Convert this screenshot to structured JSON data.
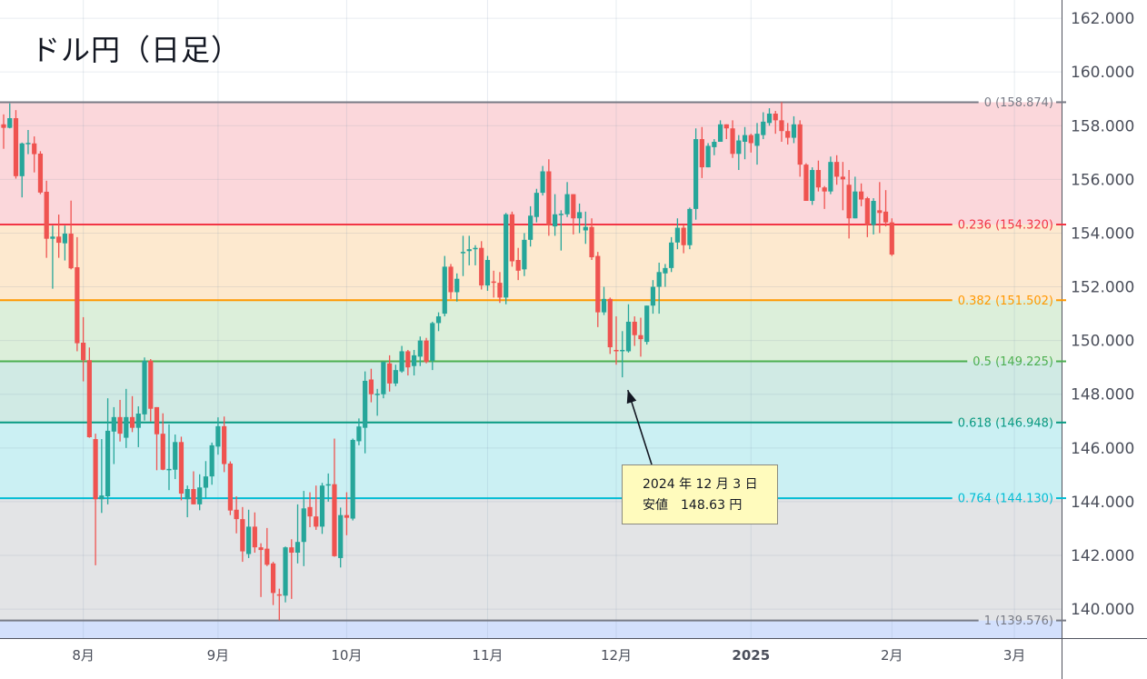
{
  "title": "ドル円（日足）",
  "chart_data": {
    "type": "candlestick",
    "title": "ドル円（日足）",
    "ylim": [
      138.92,
      162.68
    ],
    "y_ticks": [
      140,
      142,
      144,
      146,
      148,
      150,
      152,
      154,
      156,
      158,
      160,
      162
    ],
    "y_tick_labels": [
      "140.000",
      "142.000",
      "144.000",
      "146.000",
      "148.000",
      "150.000",
      "152.000",
      "154.000",
      "156.000",
      "158.000",
      "160.000",
      "162.000"
    ],
    "x_ticks": [
      {
        "date": "2024-08-01",
        "label": "8月",
        "bold": false
      },
      {
        "date": "2024-09-02",
        "label": "9月",
        "bold": false
      },
      {
        "date": "2024-10-01",
        "label": "10月",
        "bold": false
      },
      {
        "date": "2024-11-01",
        "label": "11月",
        "bold": false
      },
      {
        "date": "2024-12-02",
        "label": "12月",
        "bold": false
      },
      {
        "date": "2025-01-01",
        "label": "2025",
        "bold": true
      },
      {
        "date": "2025-02-03",
        "label": "2月",
        "bold": false
      },
      {
        "date": "2025-03-03",
        "label": "3月",
        "bold": false
      }
    ],
    "grid": true,
    "colors": {
      "up": "#26a69a",
      "down": "#ef5350"
    },
    "candle_fields": [
      "date",
      "open",
      "high",
      "low",
      "close"
    ],
    "candles": [
      [
        "2024-07-15",
        158.05,
        158.42,
        157.14,
        157.92
      ],
      [
        "2024-07-16",
        157.92,
        158.83,
        157.9,
        158.28
      ],
      [
        "2024-07-17",
        158.28,
        158.58,
        156.03,
        156.12
      ],
      [
        "2024-07-18",
        156.12,
        157.37,
        155.33,
        157.34
      ],
      [
        "2024-07-19",
        157.34,
        157.84,
        156.94,
        157.36
      ],
      [
        "2024-07-22",
        157.34,
        157.6,
        156.26,
        156.94
      ],
      [
        "2024-07-23",
        156.96,
        157.05,
        155.45,
        155.51
      ],
      [
        "2024-07-24",
        155.54,
        155.95,
        153.08,
        153.79
      ],
      [
        "2024-07-25",
        153.79,
        154.28,
        151.93,
        153.87
      ],
      [
        "2024-07-26",
        153.87,
        154.69,
        153.08,
        153.64
      ],
      [
        "2024-07-29",
        153.62,
        154.28,
        152.98,
        153.98
      ],
      [
        "2024-07-30",
        153.98,
        155.21,
        152.65,
        152.69
      ],
      [
        "2024-07-31",
        152.73,
        153.85,
        149.6,
        149.9
      ],
      [
        "2024-08-01",
        149.92,
        150.87,
        148.48,
        149.27
      ],
      [
        "2024-08-02",
        149.27,
        149.74,
        146.38,
        146.4
      ],
      [
        "2024-08-05",
        146.33,
        146.53,
        141.63,
        144.09
      ],
      [
        "2024-08-06",
        144.09,
        146.33,
        143.58,
        144.23
      ],
      [
        "2024-08-07",
        144.2,
        147.85,
        143.9,
        146.64
      ],
      [
        "2024-08-08",
        146.61,
        147.52,
        145.4,
        147.15
      ],
      [
        "2024-08-09",
        147.15,
        147.79,
        146.24,
        146.53
      ],
      [
        "2024-08-12",
        146.38,
        148.2,
        146.0,
        147.15
      ],
      [
        "2024-08-13",
        147.15,
        147.93,
        146.59,
        146.75
      ],
      [
        "2024-08-14",
        146.75,
        147.55,
        146.03,
        147.28
      ],
      [
        "2024-08-15",
        147.25,
        149.37,
        147.02,
        149.25
      ],
      [
        "2024-08-16",
        149.25,
        149.31,
        146.99,
        147.46
      ],
      [
        "2024-08-19",
        147.52,
        147.52,
        145.17,
        146.51
      ],
      [
        "2024-08-20",
        146.53,
        147.29,
        145.17,
        145.19
      ],
      [
        "2024-08-21",
        145.18,
        146.88,
        144.43,
        145.22
      ],
      [
        "2024-08-22",
        145.19,
        146.5,
        144.84,
        146.22
      ],
      [
        "2024-08-23",
        146.22,
        146.42,
        144.05,
        144.3
      ],
      [
        "2024-08-26",
        144.09,
        144.6,
        143.42,
        144.47
      ],
      [
        "2024-08-27",
        144.47,
        145.13,
        143.9,
        143.9
      ],
      [
        "2024-08-28",
        143.9,
        145.02,
        143.68,
        144.53
      ],
      [
        "2024-08-29",
        144.52,
        145.51,
        144.14,
        144.94
      ],
      [
        "2024-08-30",
        144.94,
        146.2,
        144.63,
        146.1
      ],
      [
        "2024-09-02",
        146.05,
        147.14,
        145.75,
        146.81
      ],
      [
        "2024-09-03",
        146.81,
        147.17,
        145.1,
        145.4
      ],
      [
        "2024-09-04",
        145.42,
        145.5,
        143.5,
        143.67
      ],
      [
        "2024-09-05",
        143.7,
        144.2,
        142.82,
        143.35
      ],
      [
        "2024-09-06",
        143.35,
        143.8,
        141.76,
        142.15
      ],
      [
        "2024-09-09",
        142.05,
        143.7,
        141.9,
        143.07
      ],
      [
        "2024-09-10",
        143.07,
        143.6,
        142.1,
        142.3
      ],
      [
        "2024-09-11",
        142.3,
        142.45,
        140.45,
        142.2
      ],
      [
        "2024-09-12",
        142.25,
        143.02,
        141.6,
        141.65
      ],
      [
        "2024-09-13",
        141.7,
        141.76,
        140.15,
        140.6
      ],
      [
        "2024-09-16",
        140.55,
        140.76,
        139.58,
        140.5
      ],
      [
        "2024-09-17",
        140.5,
        142.33,
        140.25,
        142.3
      ],
      [
        "2024-09-18",
        142.3,
        142.6,
        140.38,
        142.1
      ],
      [
        "2024-09-19",
        142.1,
        143.9,
        141.7,
        142.5
      ],
      [
        "2024-09-20",
        142.5,
        144.4,
        141.6,
        143.75
      ],
      [
        "2024-09-23",
        143.8,
        144.35,
        143.05,
        143.45
      ],
      [
        "2024-09-24",
        143.45,
        144.6,
        142.95,
        143.07
      ],
      [
        "2024-09-25",
        143.07,
        144.7,
        142.8,
        144.6
      ],
      [
        "2024-09-26",
        144.6,
        145.05,
        144.0,
        144.65
      ],
      [
        "2024-09-27",
        144.65,
        146.35,
        141.95,
        141.97
      ],
      [
        "2024-09-30",
        141.9,
        143.78,
        141.55,
        143.5
      ],
      [
        "2024-10-01",
        143.5,
        144.35,
        142.75,
        143.4
      ],
      [
        "2024-10-02",
        143.37,
        146.35,
        143.3,
        146.3
      ],
      [
        "2024-10-03",
        146.25,
        147.1,
        146.1,
        146.8
      ],
      [
        "2024-10-04",
        146.75,
        148.85,
        145.8,
        148.5
      ],
      [
        "2024-10-07",
        148.55,
        148.95,
        147.7,
        148.0
      ],
      [
        "2024-10-08",
        147.98,
        148.2,
        147.2,
        148.02
      ],
      [
        "2024-10-09",
        148.0,
        149.22,
        147.85,
        149.2
      ],
      [
        "2024-10-10",
        149.15,
        149.45,
        148.1,
        148.4
      ],
      [
        "2024-10-11",
        148.4,
        149.1,
        148.3,
        148.9
      ],
      [
        "2024-10-14",
        148.85,
        149.8,
        148.8,
        149.6
      ],
      [
        "2024-10-15",
        149.6,
        149.65,
        148.7,
        149.0
      ],
      [
        "2024-10-16",
        149.05,
        149.65,
        148.7,
        149.45
      ],
      [
        "2024-10-17",
        149.4,
        150.15,
        149.05,
        150.0
      ],
      [
        "2024-10-18",
        150.0,
        150.1,
        149.15,
        149.2
      ],
      [
        "2024-10-21",
        149.25,
        150.7,
        148.9,
        150.65
      ],
      [
        "2024-10-22",
        150.65,
        151.05,
        150.35,
        150.9
      ],
      [
        "2024-10-23",
        151.0,
        153.15,
        150.9,
        152.75
      ],
      [
        "2024-10-24",
        152.75,
        152.85,
        151.55,
        151.8
      ],
      [
        "2024-10-25",
        151.8,
        152.5,
        151.45,
        152.3
      ],
      [
        "2024-10-28",
        153.28,
        153.9,
        152.4,
        153.3
      ],
      [
        "2024-10-29",
        153.33,
        153.9,
        152.8,
        153.4
      ],
      [
        "2024-10-30",
        153.4,
        153.55,
        152.8,
        153.45
      ],
      [
        "2024-10-31",
        153.45,
        153.7,
        151.9,
        152.05
      ],
      [
        "2024-11-01",
        152.05,
        153.15,
        151.85,
        153.0
      ],
      [
        "2024-11-04",
        152.2,
        152.6,
        151.6,
        152.15
      ],
      [
        "2024-11-05",
        152.15,
        152.55,
        151.4,
        151.6
      ],
      [
        "2024-11-06",
        151.6,
        154.75,
        151.35,
        154.7
      ],
      [
        "2024-11-07",
        154.7,
        154.8,
        152.75,
        152.95
      ],
      [
        "2024-11-08",
        153.0,
        153.45,
        152.25,
        152.6
      ],
      [
        "2024-11-11",
        152.65,
        154.0,
        152.4,
        153.75
      ],
      [
        "2024-11-12",
        153.75,
        155.0,
        153.5,
        154.65
      ],
      [
        "2024-11-13",
        154.6,
        155.65,
        154.4,
        155.5
      ],
      [
        "2024-11-14",
        155.5,
        156.5,
        155.4,
        156.3
      ],
      [
        "2024-11-15",
        156.3,
        156.75,
        153.9,
        154.3
      ],
      [
        "2024-11-18",
        154.25,
        155.45,
        153.9,
        154.7
      ],
      [
        "2024-11-19",
        154.68,
        154.85,
        153.35,
        154.72
      ],
      [
        "2024-11-20",
        154.7,
        155.9,
        154.6,
        155.45
      ],
      [
        "2024-11-21",
        155.45,
        155.45,
        153.95,
        154.55
      ],
      [
        "2024-11-22",
        154.55,
        155.1,
        154.0,
        154.78
      ],
      [
        "2024-11-25",
        154.1,
        154.8,
        153.6,
        154.23
      ],
      [
        "2024-11-26",
        154.23,
        154.55,
        153.0,
        153.1
      ],
      [
        "2024-11-27",
        153.15,
        153.3,
        150.5,
        151.05
      ],
      [
        "2024-11-28",
        151.05,
        152.0,
        150.95,
        151.55
      ],
      [
        "2024-11-29",
        151.55,
        151.6,
        149.5,
        149.75
      ],
      [
        "2024-12-02",
        149.65,
        150.9,
        149.1,
        149.6
      ],
      [
        "2024-12-03",
        149.6,
        150.35,
        148.63,
        149.65
      ],
      [
        "2024-12-04",
        149.6,
        151.35,
        149.55,
        150.7
      ],
      [
        "2024-12-05",
        150.7,
        150.9,
        149.8,
        150.2
      ],
      [
        "2024-12-06",
        150.2,
        150.85,
        149.4,
        150.05
      ],
      [
        "2024-12-09",
        149.95,
        151.3,
        149.85,
        151.3
      ],
      [
        "2024-12-10",
        151.3,
        152.25,
        151.0,
        152.0
      ],
      [
        "2024-12-11",
        152.0,
        152.9,
        151.0,
        152.55
      ],
      [
        "2024-12-12",
        152.5,
        152.85,
        152.0,
        152.7
      ],
      [
        "2024-12-13",
        152.7,
        153.85,
        152.55,
        153.65
      ],
      [
        "2024-12-16",
        153.65,
        154.55,
        153.4,
        154.2
      ],
      [
        "2024-12-17",
        154.2,
        154.3,
        153.25,
        153.55
      ],
      [
        "2024-12-18",
        153.55,
        154.95,
        153.4,
        154.9
      ],
      [
        "2024-12-19",
        154.9,
        157.9,
        154.5,
        157.5
      ],
      [
        "2024-12-20",
        157.5,
        157.95,
        156.05,
        156.45
      ],
      [
        "2024-12-23",
        156.45,
        157.35,
        156.45,
        157.25
      ],
      [
        "2024-12-24",
        157.2,
        157.5,
        156.9,
        157.4
      ],
      [
        "2024-12-25",
        157.4,
        158.2,
        157.4,
        158.05
      ],
      [
        "2024-12-26",
        158.05,
        158.05,
        157.5,
        157.9
      ],
      [
        "2024-12-27",
        157.9,
        158.2,
        156.8,
        156.95
      ],
      [
        "2024-12-30",
        156.95,
        157.65,
        156.35,
        157.45
      ],
      [
        "2024-12-31",
        157.4,
        157.95,
        156.75,
        157.65
      ],
      [
        "2025-01-01",
        157.65,
        157.7,
        157.0,
        157.35
      ],
      [
        "2025-01-02",
        157.25,
        158.1,
        156.55,
        157.7
      ],
      [
        "2025-01-03",
        157.65,
        158.5,
        157.5,
        158.15
      ],
      [
        "2025-01-06",
        158.1,
        158.65,
        158.0,
        158.45
      ],
      [
        "2025-01-07",
        158.45,
        158.55,
        157.7,
        158.2
      ],
      [
        "2025-01-08",
        158.2,
        158.874,
        157.4,
        157.8
      ],
      [
        "2025-01-09",
        157.8,
        158.1,
        157.3,
        157.55
      ],
      [
        "2025-01-10",
        157.55,
        158.35,
        157.35,
        158.05
      ],
      [
        "2025-01-13",
        158.05,
        158.2,
        156.1,
        156.55
      ],
      [
        "2025-01-14",
        156.55,
        156.6,
        155.2,
        155.2
      ],
      [
        "2025-01-15",
        155.2,
        156.45,
        155.05,
        156.35
      ],
      [
        "2025-01-16",
        156.35,
        156.7,
        155.55,
        155.7
      ],
      [
        "2025-01-17",
        155.7,
        155.75,
        154.9,
        155.55
      ],
      [
        "2025-01-20",
        155.55,
        156.85,
        155.45,
        156.65
      ],
      [
        "2025-01-21",
        156.65,
        156.9,
        155.8,
        156.1
      ],
      [
        "2025-01-22",
        156.1,
        156.65,
        154.85,
        156.0
      ],
      [
        "2025-01-23",
        155.8,
        156.35,
        153.8,
        154.55
      ],
      [
        "2025-01-24",
        154.55,
        156.1,
        154.55,
        155.55
      ],
      [
        "2025-01-27",
        155.55,
        155.85,
        155.0,
        155.25
      ],
      [
        "2025-01-28",
        155.3,
        155.35,
        153.85,
        154.3
      ],
      [
        "2025-01-29",
        154.3,
        155.3,
        153.95,
        155.2
      ],
      [
        "2025-01-30",
        154.85,
        155.9,
        154.0,
        154.75
      ],
      [
        "2025-01-31",
        154.8,
        155.6,
        154.25,
        154.4
      ],
      [
        "2025-02-03",
        154.4,
        154.55,
        153.15,
        153.2
      ]
    ],
    "fib_levels": [
      {
        "ratio": "0",
        "price": 158.874,
        "label": "0 (158.874)",
        "color": "#787b86",
        "fill": "#fbd7db"
      },
      {
        "ratio": "0.236",
        "price": 154.32,
        "label": "0.236 (154.320)",
        "color": "#f23645",
        "fill": "#fde9cf"
      },
      {
        "ratio": "0.382",
        "price": 151.502,
        "label": "0.382 (151.502)",
        "color": "#ff9800",
        "fill": "#dcefda"
      },
      {
        "ratio": "0.5",
        "price": 149.225,
        "label": "0.5 (149.225)",
        "color": "#4caf50",
        "fill": "#d0eae4"
      },
      {
        "ratio": "0.618",
        "price": 146.948,
        "label": "0.618 (146.948)",
        "color": "#089981",
        "fill": "#cbf0f3"
      },
      {
        "ratio": "0.764",
        "price": 144.13,
        "label": "0.764 (144.130)",
        "color": "#00bcd4",
        "fill": "#e3e4e6"
      },
      {
        "ratio": "1",
        "price": 139.576,
        "label": "1 (139.576)",
        "color": "#787b86",
        "fill": "#d3e0fc"
      }
    ],
    "annotation": {
      "date": "2024-12-03",
      "price": 148.63,
      "line1": "2024 年 12 月 3 日",
      "line2": "安値　148.63 円"
    }
  }
}
